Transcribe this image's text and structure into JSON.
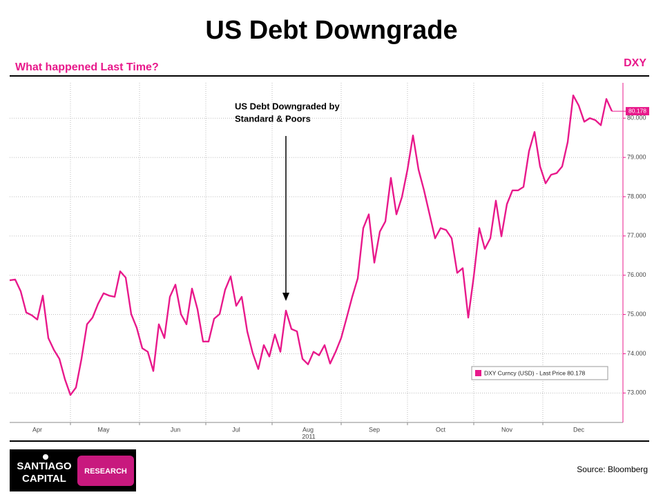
{
  "chart_data": {
    "type": "line",
    "title": "US Debt Downgrade",
    "subtitle": "What happened Last Time?",
    "axis_title": "DXY",
    "year_label": "2011",
    "annotation": [
      "US Debt Downgraded by",
      "Standard & Poors"
    ],
    "annotation_index": 50,
    "categories": [
      null,
      null,
      null,
      null,
      null,
      "Apr",
      null,
      null,
      null,
      null,
      null,
      null,
      null,
      null,
      null,
      null,
      null,
      "May",
      null,
      null,
      null,
      null,
      null,
      null,
      null,
      null,
      null,
      null,
      null,
      null,
      "Jun",
      null,
      null,
      null,
      null,
      null,
      null,
      null,
      null,
      null,
      null,
      "Jul",
      null,
      null,
      null,
      null,
      null,
      null,
      null,
      null,
      null,
      null,
      null,
      null,
      "Aug",
      null,
      null,
      null,
      null,
      null,
      null,
      null,
      null,
      null,
      null,
      null,
      "Sep",
      null,
      null,
      null,
      null,
      null,
      null,
      null,
      null,
      null,
      null,
      null,
      "Oct",
      null,
      null,
      null,
      null,
      null,
      null,
      null,
      null,
      null,
      null,
      null,
      "Nov",
      null,
      null,
      null,
      null,
      null,
      null,
      null,
      null,
      null,
      null,
      null,
      null,
      "Dec",
      null,
      null,
      null,
      null,
      null,
      null
    ],
    "series": [
      {
        "name": "DXY Curncy (USD) - Last Price 80.178",
        "color": "#e8198b",
        "values": [
          75.87,
          75.89,
          75.59,
          75.05,
          74.98,
          74.87,
          75.48,
          74.4,
          74.1,
          73.87,
          73.35,
          72.95,
          73.14,
          73.87,
          74.75,
          74.92,
          75.27,
          75.54,
          75.48,
          75.45,
          76.1,
          75.94,
          75.01,
          74.66,
          74.14,
          74.05,
          73.56,
          74.75,
          74.4,
          75.45,
          75.76,
          75.01,
          74.75,
          75.66,
          75.13,
          74.31,
          74.31,
          74.89,
          75.01,
          75.63,
          75.97,
          75.22,
          75.45,
          74.57,
          74.01,
          73.61,
          74.22,
          73.93,
          74.49,
          74.05,
          75.1,
          74.63,
          74.57,
          73.87,
          73.73,
          74.05,
          73.96,
          74.22,
          73.75,
          74.05,
          74.4,
          74.92,
          75.45,
          75.92,
          77.2,
          77.55,
          76.32,
          77.11,
          77.37,
          78.48,
          77.55,
          77.99,
          78.69,
          79.56,
          78.69,
          78.16,
          77.55,
          76.94,
          77.2,
          77.15,
          76.94,
          76.06,
          76.18,
          74.92,
          75.97,
          77.2,
          76.67,
          76.94,
          77.9,
          76.99,
          77.81,
          78.16,
          78.16,
          78.25,
          79.16,
          79.65,
          78.77,
          78.34,
          78.56,
          78.6,
          78.77,
          79.39,
          80.58,
          80.32,
          79.91,
          80.0,
          79.95,
          79.82,
          80.49,
          80.178
        ],
        "value_labels": [
          null,
          null,
          null,
          null,
          null,
          null,
          null,
          null,
          null,
          null,
          null,
          null,
          null,
          null,
          null,
          null,
          null,
          null,
          null,
          null,
          null,
          null,
          null,
          null,
          null,
          null,
          null,
          null,
          null,
          null,
          null,
          null,
          null,
          null,
          null,
          null,
          null,
          null,
          null,
          null,
          null,
          null,
          null,
          null,
          null,
          null,
          null,
          null,
          null,
          null,
          null,
          null,
          null,
          null,
          null,
          null,
          null,
          null,
          null,
          null,
          null,
          null,
          null,
          null,
          null,
          null,
          null,
          null,
          null,
          null,
          null,
          null,
          null,
          null,
          null,
          null,
          null,
          null,
          null,
          null,
          null,
          null,
          null,
          null,
          null,
          null,
          null,
          null,
          null,
          null,
          null,
          null,
          null,
          null,
          null,
          null,
          null,
          null,
          null,
          null,
          null,
          null,
          null,
          null,
          null,
          null,
          null,
          null,
          null,
          "80.178"
        ]
      }
    ],
    "ylim": [
      72.25,
      80.9
    ],
    "yticks": [
      {
        "value": 73,
        "label": "73.000"
      },
      {
        "value": 74,
        "label": "74.000"
      },
      {
        "value": 75,
        "label": "75.000"
      },
      {
        "value": 76,
        "label": "76.000"
      },
      {
        "value": 77,
        "label": "77.000"
      },
      {
        "value": 78,
        "label": "78.000"
      },
      {
        "value": 79,
        "label": "79.000"
      },
      {
        "value": 80,
        "label": "80.000"
      }
    ],
    "y_axis_side": "right",
    "grid": true,
    "legend": "lower right"
  },
  "logo": {
    "lines": [
      "SANTIAGO",
      "CAPITAL"
    ],
    "tag": "RESEARCH"
  },
  "source": "Source: Bloomberg"
}
